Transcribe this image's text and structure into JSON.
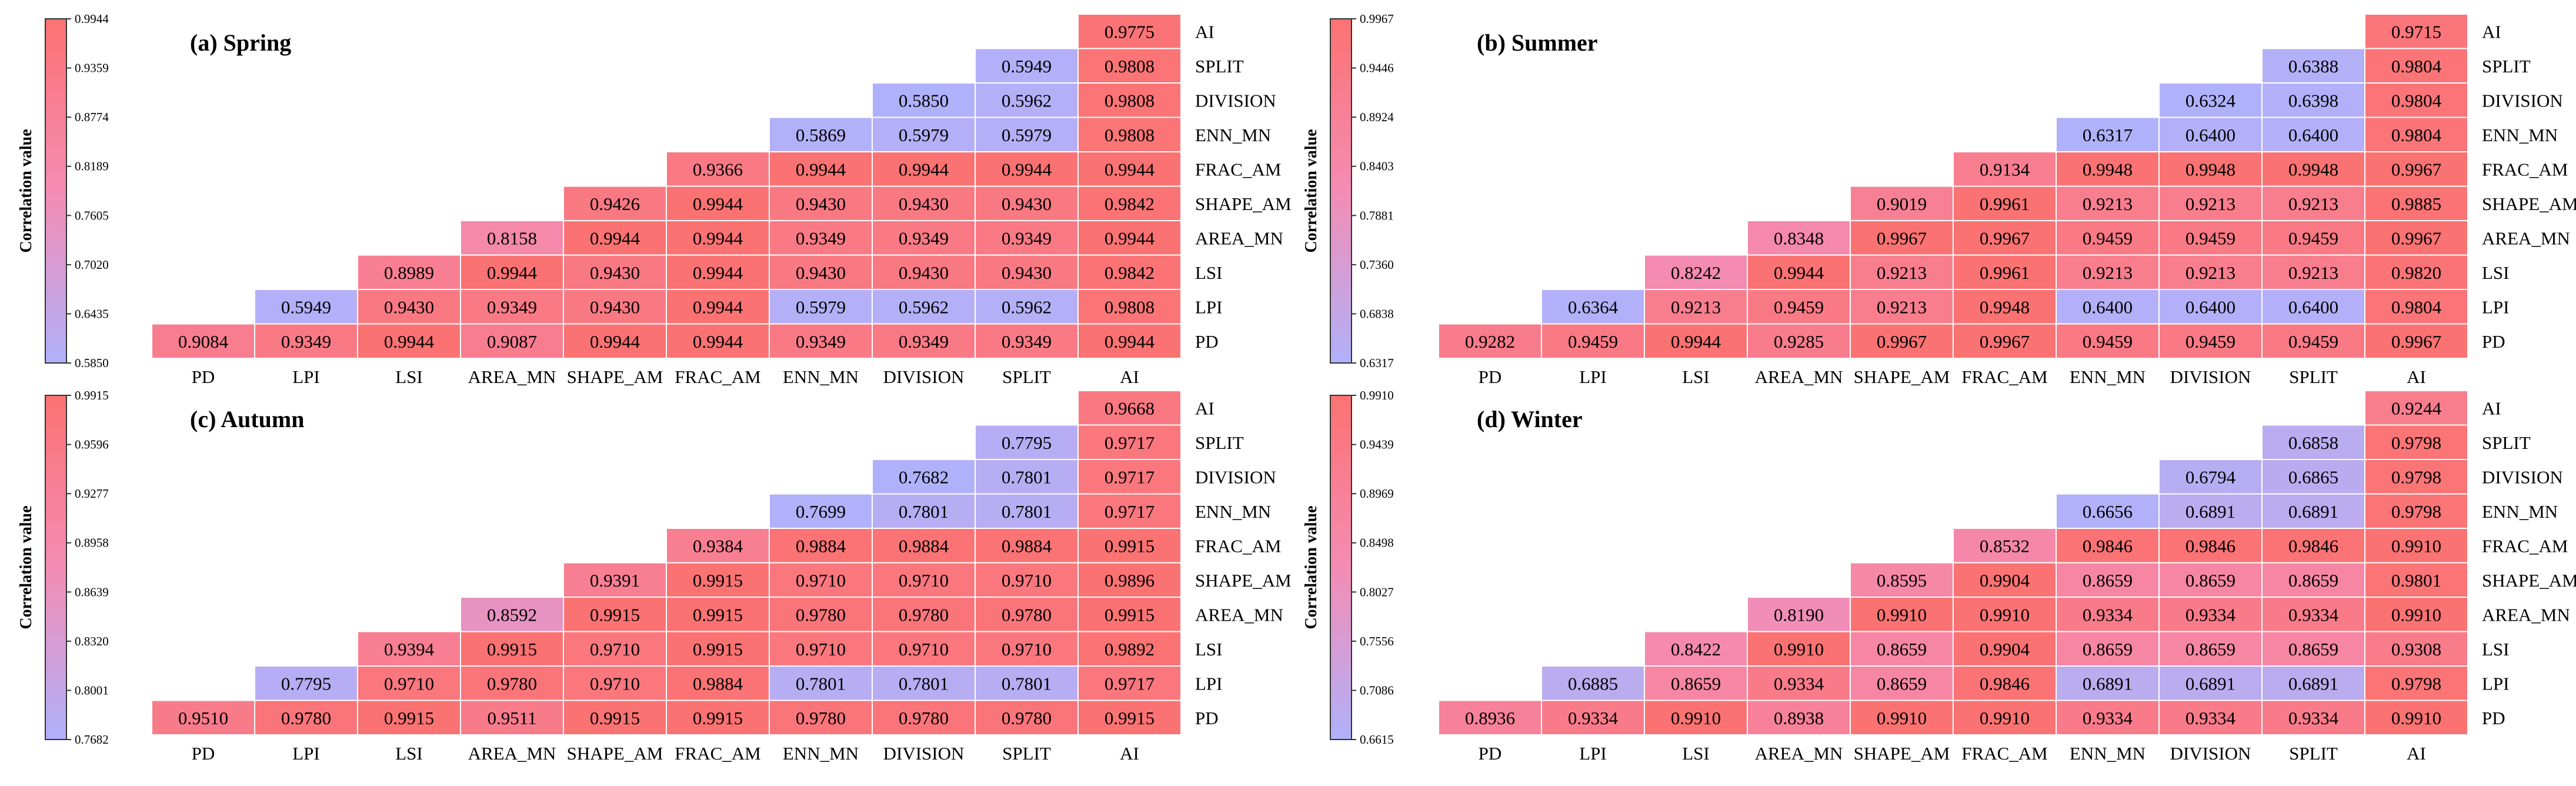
{
  "variables": [
    "PD",
    "LPI",
    "LSI",
    "AREA_MN",
    "SHAPE_AM",
    "FRAC_AM",
    "ENN_MN",
    "DIVISION",
    "SPLIT",
    "AI"
  ],
  "colorbar_label": "Correlation value",
  "colors": {
    "low": "#b0b1fb",
    "mid": "#f48cb4",
    "high": "#fb7272",
    "cell_border": "#ffffff",
    "bar_border": "#333333"
  },
  "chart_data": [
    {
      "type": "heatmap",
      "title": "(a) Spring",
      "colorbar_ticks": [
        "0.9944",
        "0.9359",
        "0.8774",
        "0.8189",
        "0.7605",
        "0.7020",
        "0.6435",
        "0.5850"
      ],
      "range": [
        0.585,
        0.9944
      ],
      "rows": [
        [
          "0.9775"
        ],
        [
          "0.5949",
          "0.9808"
        ],
        [
          "0.5850",
          "0.5962",
          "0.9808"
        ],
        [
          "0.5869",
          "0.5979",
          "0.5979",
          "0.9808"
        ],
        [
          "0.9366",
          "0.9944",
          "0.9944",
          "0.9944",
          "0.9944"
        ],
        [
          "0.9426",
          "0.9944",
          "0.9430",
          "0.9430",
          "0.9430",
          "0.9842"
        ],
        [
          "0.8158",
          "0.9944",
          "0.9944",
          "0.9349",
          "0.9349",
          "0.9349",
          "0.9944"
        ],
        [
          "0.8989",
          "0.9944",
          "0.9430",
          "0.9944",
          "0.9430",
          "0.9430",
          "0.9430",
          "0.9842"
        ],
        [
          "0.5949",
          "0.9430",
          "0.9349",
          "0.9430",
          "0.9944",
          "0.5979",
          "0.5962",
          "0.5962",
          "0.9808"
        ],
        [
          "0.9084",
          "0.9349",
          "0.9944",
          "0.9087",
          "0.9944",
          "0.9944",
          "0.9349",
          "0.9349",
          "0.9349",
          "0.9944"
        ]
      ]
    },
    {
      "type": "heatmap",
      "title": "(b) Summer",
      "colorbar_ticks": [
        "0.9967",
        "0.9446",
        "0.8924",
        "0.8403",
        "0.7881",
        "0.7360",
        "0.6838",
        "0.6317"
      ],
      "range": [
        0.6317,
        0.9967
      ],
      "rows": [
        [
          "0.9715"
        ],
        [
          "0.6388",
          "0.9804"
        ],
        [
          "0.6324",
          "0.6398",
          "0.9804"
        ],
        [
          "0.6317",
          "0.6400",
          "0.6400",
          "0.9804"
        ],
        [
          "0.9134",
          "0.9948",
          "0.9948",
          "0.9948",
          "0.9967"
        ],
        [
          "0.9019",
          "0.9961",
          "0.9213",
          "0.9213",
          "0.9213",
          "0.9885"
        ],
        [
          "0.8348",
          "0.9967",
          "0.9967",
          "0.9459",
          "0.9459",
          "0.9459",
          "0.9967"
        ],
        [
          "0.8242",
          "0.9944",
          "0.9213",
          "0.9961",
          "0.9213",
          "0.9213",
          "0.9213",
          "0.9820"
        ],
        [
          "0.6364",
          "0.9213",
          "0.9459",
          "0.9213",
          "0.9948",
          "0.6400",
          "0.6400",
          "0.6400",
          "0.9804"
        ],
        [
          "0.9282",
          "0.9459",
          "0.9944",
          "0.9285",
          "0.9967",
          "0.9967",
          "0.9459",
          "0.9459",
          "0.9459",
          "0.9967"
        ]
      ]
    },
    {
      "type": "heatmap",
      "title": "(c) Autumn",
      "colorbar_ticks": [
        "0.9915",
        "0.9596",
        "0.9277",
        "0.8958",
        "0.8639",
        "0.8320",
        "0.8001",
        "0.7682"
      ],
      "range": [
        0.7682,
        0.9915
      ],
      "rows": [
        [
          "0.9668"
        ],
        [
          "0.7795",
          "0.9717"
        ],
        [
          "0.7682",
          "0.7801",
          "0.9717"
        ],
        [
          "0.7699",
          "0.7801",
          "0.7801",
          "0.9717"
        ],
        [
          "0.9384",
          "0.9884",
          "0.9884",
          "0.9884",
          "0.9915"
        ],
        [
          "0.9391",
          "0.9915",
          "0.9710",
          "0.9710",
          "0.9710",
          "0.9896"
        ],
        [
          "0.8592",
          "0.9915",
          "0.9915",
          "0.9780",
          "0.9780",
          "0.9780",
          "0.9915"
        ],
        [
          "0.9394",
          "0.9915",
          "0.9710",
          "0.9915",
          "0.9710",
          "0.9710",
          "0.9710",
          "0.9892"
        ],
        [
          "0.7795",
          "0.9710",
          "0.9780",
          "0.9710",
          "0.9884",
          "0.7801",
          "0.7801",
          "0.7801",
          "0.9717"
        ],
        [
          "0.9510",
          "0.9780",
          "0.9915",
          "0.9511",
          "0.9915",
          "0.9915",
          "0.9780",
          "0.9780",
          "0.9780",
          "0.9915"
        ]
      ]
    },
    {
      "type": "heatmap",
      "title": "(d) Winter",
      "colorbar_ticks": [
        "0.9910",
        "0.9439",
        "0.8969",
        "0.8498",
        "0.8027",
        "0.7556",
        "0.7086",
        "0.6615"
      ],
      "range": [
        0.6615,
        0.991
      ],
      "rows": [
        [
          "0.9244"
        ],
        [
          "0.6858",
          "0.9798"
        ],
        [
          "0.6794",
          "0.6865",
          "0.9798"
        ],
        [
          "0.6656",
          "0.6891",
          "0.6891",
          "0.9798"
        ],
        [
          "0.8532",
          "0.9846",
          "0.9846",
          "0.9846",
          "0.9910"
        ],
        [
          "0.8595",
          "0.9904",
          "0.8659",
          "0.8659",
          "0.8659",
          "0.9801"
        ],
        [
          "0.8190",
          "0.9910",
          "0.9910",
          "0.9334",
          "0.9334",
          "0.9334",
          "0.9910"
        ],
        [
          "0.8422",
          "0.9910",
          "0.8659",
          "0.9904",
          "0.8659",
          "0.8659",
          "0.8659",
          "0.9308"
        ],
        [
          "0.6885",
          "0.8659",
          "0.9334",
          "0.8659",
          "0.9846",
          "0.6891",
          "0.6891",
          "0.6891",
          "0.9798"
        ],
        [
          "0.8936",
          "0.9334",
          "0.9910",
          "0.8938",
          "0.9910",
          "0.9910",
          "0.9334",
          "0.9334",
          "0.9334",
          "0.9910"
        ]
      ]
    }
  ]
}
